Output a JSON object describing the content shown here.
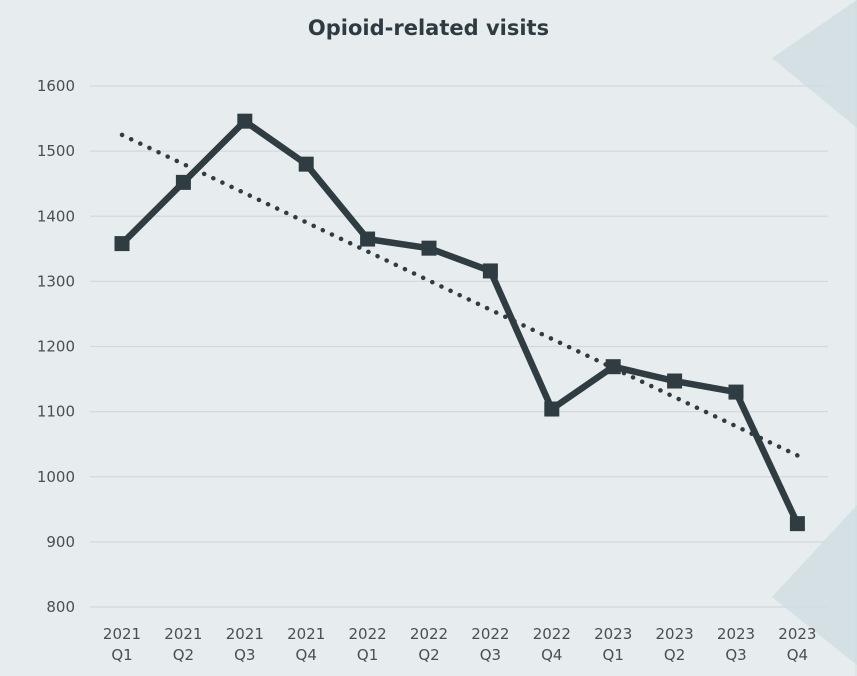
{
  "chart_data": {
    "type": "line",
    "title": "Opioid-related visits",
    "xlabel": "",
    "ylabel": "",
    "categories": [
      [
        "2021",
        "Q1"
      ],
      [
        "2021",
        "Q2"
      ],
      [
        "2021",
        "Q3"
      ],
      [
        "2021",
        "Q4"
      ],
      [
        "2022",
        "Q1"
      ],
      [
        "2022",
        "Q2"
      ],
      [
        "2022",
        "Q3"
      ],
      [
        "2022",
        "Q4"
      ],
      [
        "2023",
        "Q1"
      ],
      [
        "2023",
        "Q2"
      ],
      [
        "2023",
        "Q3"
      ],
      [
        "2023",
        "Q4"
      ]
    ],
    "series": [
      {
        "values": [
          1358,
          1452,
          1546,
          1480,
          1365,
          1351,
          1316,
          1104,
          1169,
          1147,
          1130,
          928
        ],
        "color": "#2f3c42",
        "marker": "square"
      }
    ],
    "trendline": {
      "type": "linear",
      "style": "dotted",
      "color": "#2f3c42"
    },
    "yticks": [
      800,
      900,
      1000,
      1100,
      1200,
      1300,
      1400,
      1500,
      1600
    ],
    "ylim": [
      800,
      1600
    ],
    "grid": true,
    "legend": "none"
  },
  "colors": {
    "background": "#e7ecee",
    "gridline": "#d3d9dc",
    "series": "#2f3c42",
    "decor_accent": "#c5d7dc"
  }
}
